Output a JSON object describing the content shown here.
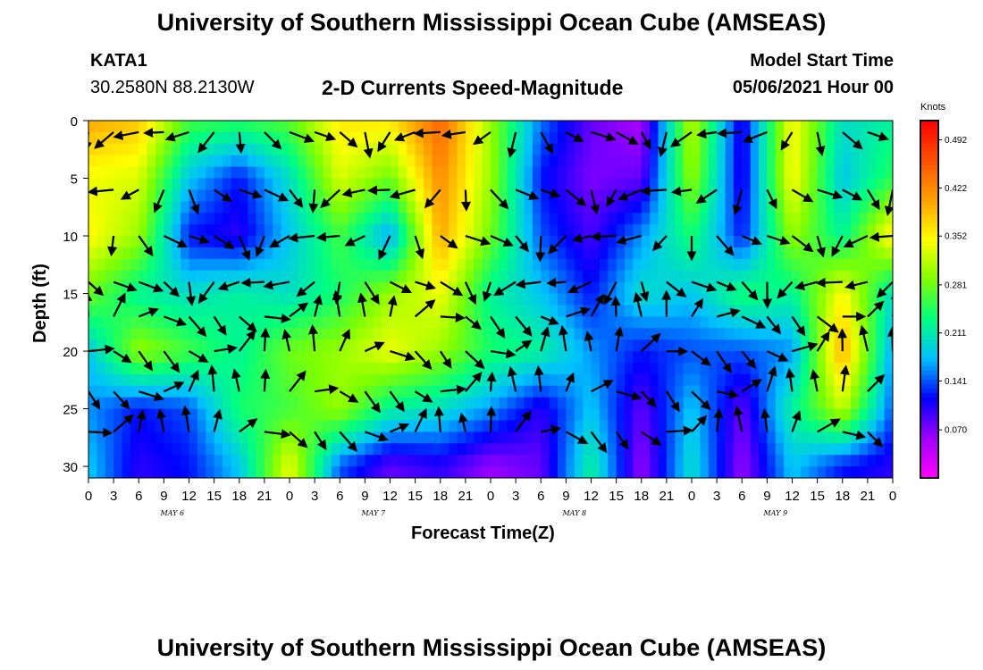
{
  "header": {
    "title_top": "University of Southern Mississippi Ocean Cube (AMSEAS)",
    "title_bottom": "University of Southern Mississippi Ocean Cube (AMSEAS)",
    "station_id": "KATA1",
    "station_coords": "30.2580N  88.2130W",
    "plot_title": "2-D Currents Speed-Magnitude",
    "model_start_label": "Model Start Time",
    "model_start_value": "05/06/2021 Hour 00"
  },
  "chart_data": {
    "type": "heatmap",
    "title": "2-D Currents Speed-Magnitude",
    "xlabel": "Forecast Time(Z)",
    "ylabel": "Depth (ft)",
    "x_ticks": [
      "0",
      "3",
      "6",
      "9",
      "12",
      "15",
      "18",
      "21",
      "0",
      "3",
      "6",
      "9",
      "12",
      "15",
      "18",
      "21",
      "0",
      "3",
      "6",
      "9",
      "12",
      "15",
      "18",
      "21",
      "0",
      "3",
      "6",
      "9",
      "12",
      "15",
      "18",
      "21",
      "0"
    ],
    "day_labels": [
      "MAY  6",
      "MAY  7",
      "MAY  8",
      "MAY  9"
    ],
    "y_ticks": [
      0,
      5,
      10,
      15,
      20,
      25,
      30
    ],
    "ylim": [
      0,
      31
    ],
    "y_inverted": true,
    "x_range_hours": [
      0,
      96
    ],
    "colorbar": {
      "units": "Knots",
      "ticks": [
        "0.492",
        "0.422",
        "0.352",
        "0.281",
        "0.211",
        "0.141",
        "0.070"
      ],
      "range": [
        0.0,
        0.52
      ],
      "colors": [
        "#ff00ff",
        "#a000ff",
        "#0000ff",
        "#00c0ff",
        "#00ff80",
        "#80ff00",
        "#ffff00",
        "#ffa000",
        "#ff5000",
        "#ff0000"
      ]
    },
    "speed_grid_hours": [
      0,
      6,
      12,
      18,
      24,
      30,
      36,
      42,
      48,
      54,
      60,
      66,
      72,
      78,
      84,
      90,
      96
    ],
    "speed_grid_depths": [
      0,
      5,
      10,
      15,
      20,
      25,
      30
    ],
    "speed_knots": [
      [
        0.4,
        0.38,
        0.26,
        0.25,
        0.27,
        0.36,
        0.36,
        0.45,
        0.3,
        0.15,
        0.08,
        0.05,
        0.32,
        0.1,
        0.35,
        0.2,
        0.22
      ],
      [
        0.34,
        0.33,
        0.18,
        0.12,
        0.2,
        0.33,
        0.28,
        0.42,
        0.3,
        0.12,
        0.07,
        0.08,
        0.3,
        0.1,
        0.35,
        0.18,
        0.25
      ],
      [
        0.35,
        0.3,
        0.12,
        0.1,
        0.18,
        0.26,
        0.16,
        0.4,
        0.28,
        0.14,
        0.09,
        0.16,
        0.24,
        0.12,
        0.3,
        0.22,
        0.36
      ],
      [
        0.28,
        0.22,
        0.2,
        0.22,
        0.2,
        0.24,
        0.3,
        0.34,
        0.22,
        0.18,
        0.12,
        0.2,
        0.18,
        0.24,
        0.22,
        0.35,
        0.2
      ],
      [
        0.18,
        0.3,
        0.26,
        0.22,
        0.28,
        0.3,
        0.34,
        0.3,
        0.24,
        0.22,
        0.16,
        0.12,
        0.14,
        0.14,
        0.16,
        0.4,
        0.16
      ],
      [
        0.16,
        0.12,
        0.14,
        0.24,
        0.26,
        0.3,
        0.22,
        0.2,
        0.16,
        0.1,
        0.18,
        0.08,
        0.18,
        0.08,
        0.22,
        0.32,
        0.14
      ],
      [
        0.18,
        0.1,
        0.12,
        0.18,
        0.34,
        0.14,
        0.08,
        0.1,
        0.06,
        0.08,
        0.22,
        0.06,
        0.2,
        0.06,
        0.18,
        0.12,
        0.1
      ]
    ],
    "vectors_note": "current direction arrows overlaid on the speed field"
  }
}
